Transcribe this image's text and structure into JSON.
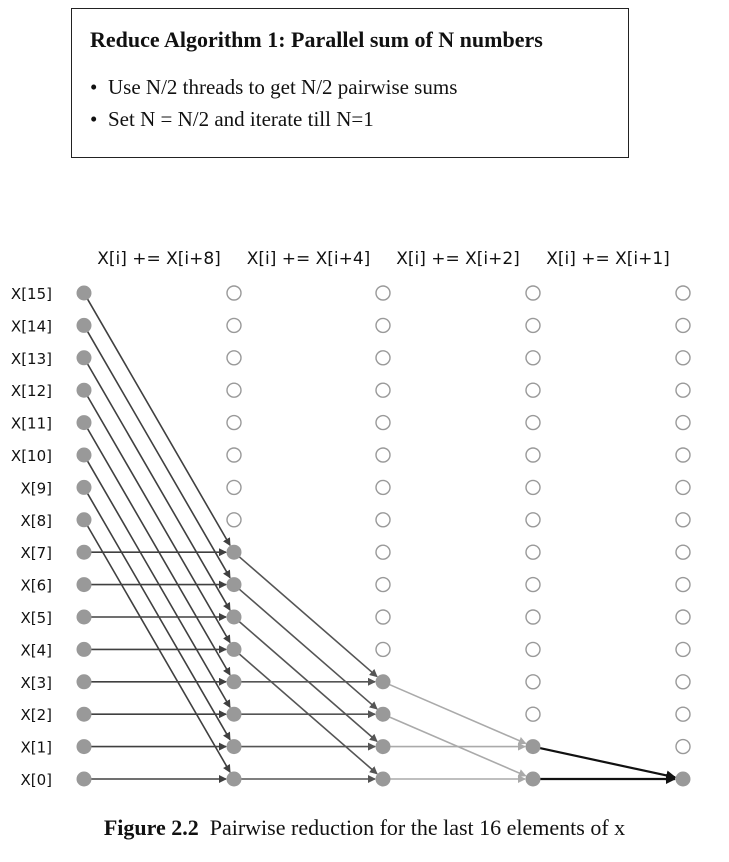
{
  "box": {
    "title": "Reduce Algorithm 1: Parallel sum of N numbers",
    "bullets": [
      "Use N/2 threads to get N/2 pairwise sums",
      "Set N = N/2 and iterate till N=1"
    ]
  },
  "stage_labels": [
    "X[i] += X[i+8]",
    "X[i] += X[i+4]",
    "X[i] += X[i+2]",
    "X[i] += X[i+1]"
  ],
  "row_labels": [
    "X[15]",
    "X[14]",
    "X[13]",
    "X[12]",
    "X[11]",
    "X[10]",
    "X[9]",
    "X[8]",
    "X[7]",
    "X[6]",
    "X[5]",
    "X[4]",
    "X[3]",
    "X[2]",
    "X[1]",
    "X[0]"
  ],
  "caption": {
    "figure_label": "Figure 2.2",
    "text": "Pairwise reduction for the last 16 elements of x"
  },
  "colors": {
    "filled_node": "#999999",
    "empty_node_stroke": "#999999",
    "stage1_arrow": "#404040",
    "stage2_arrow": "#555555",
    "stage3_arrow": "#aaaaaa",
    "stage4_arrow": "#111111"
  },
  "diagram": {
    "element_count": 16,
    "stage_offsets": [
      8,
      4,
      2,
      1
    ]
  }
}
